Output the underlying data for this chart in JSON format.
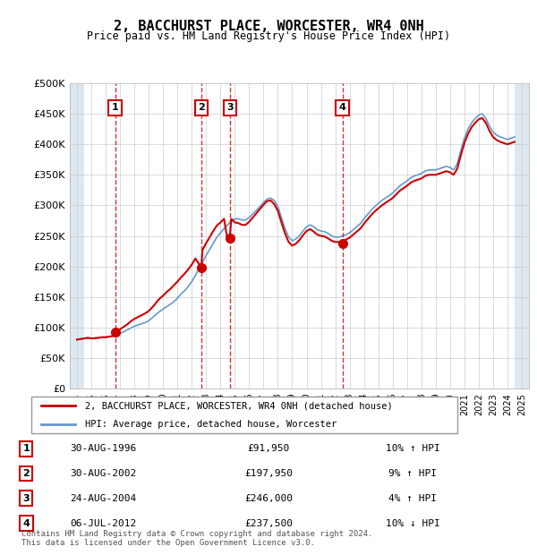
{
  "title": "2, BACCHURST PLACE, WORCESTER, WR4 0NH",
  "subtitle": "Price paid vs. HM Land Registry's House Price Index (HPI)",
  "transactions": [
    {
      "num": 1,
      "date": "30-AUG-1996",
      "price": 91950,
      "year": 1996.66,
      "pct": "10%",
      "dir": "↑"
    },
    {
      "num": 2,
      "date": "30-AUG-2002",
      "price": 197950,
      "year": 2002.66,
      "pct": "9%",
      "dir": "↑"
    },
    {
      "num": 3,
      "date": "24-AUG-2004",
      "price": 246000,
      "year": 2004.65,
      "pct": "4%",
      "dir": "↑"
    },
    {
      "num": 4,
      "date": "06-JUL-2012",
      "price": 237500,
      "year": 2012.51,
      "pct": "10%",
      "dir": "↓"
    }
  ],
  "hpi_line_color": "#6699cc",
  "property_line_color": "#cc0000",
  "dot_color": "#cc0000",
  "dashed_line_color": "#cc0000",
  "hatch_color": "#ccddee",
  "grid_color": "#cccccc",
  "ylim": [
    0,
    500000
  ],
  "yticks": [
    0,
    50000,
    100000,
    150000,
    200000,
    250000,
    300000,
    350000,
    400000,
    450000,
    500000
  ],
  "xlim_start": 1993.5,
  "xlim_end": 2025.5,
  "legend_label_property": "2, BACCHURST PLACE, WORCESTER, WR4 0NH (detached house)",
  "legend_label_hpi": "HPI: Average price, detached house, Worcester",
  "footer": "Contains HM Land Registry data © Crown copyright and database right 2024.\nThis data is licensed under the Open Government Licence v3.0.",
  "hpi_data": {
    "years": [
      1994.0,
      1994.25,
      1994.5,
      1994.75,
      1995.0,
      1995.25,
      1995.5,
      1995.75,
      1996.0,
      1996.25,
      1996.5,
      1996.75,
      1997.0,
      1997.25,
      1997.5,
      1997.75,
      1998.0,
      1998.25,
      1998.5,
      1998.75,
      1999.0,
      1999.25,
      1999.5,
      1999.75,
      2000.0,
      2000.25,
      2000.5,
      2000.75,
      2001.0,
      2001.25,
      2001.5,
      2001.75,
      2002.0,
      2002.25,
      2002.5,
      2002.75,
      2003.0,
      2003.25,
      2003.5,
      2003.75,
      2004.0,
      2004.25,
      2004.5,
      2004.75,
      2005.0,
      2005.25,
      2005.5,
      2005.75,
      2006.0,
      2006.25,
      2006.5,
      2006.75,
      2007.0,
      2007.25,
      2007.5,
      2007.75,
      2008.0,
      2008.25,
      2008.5,
      2008.75,
      2009.0,
      2009.25,
      2009.5,
      2009.75,
      2010.0,
      2010.25,
      2010.5,
      2010.75,
      2011.0,
      2011.25,
      2011.5,
      2011.75,
      2012.0,
      2012.25,
      2012.5,
      2012.75,
      2013.0,
      2013.25,
      2013.5,
      2013.75,
      2014.0,
      2014.25,
      2014.5,
      2014.75,
      2015.0,
      2015.25,
      2015.5,
      2015.75,
      2016.0,
      2016.25,
      2016.5,
      2016.75,
      2017.0,
      2017.25,
      2017.5,
      2017.75,
      2018.0,
      2018.25,
      2018.5,
      2018.75,
      2019.0,
      2019.25,
      2019.5,
      2019.75,
      2020.0,
      2020.25,
      2020.5,
      2020.75,
      2021.0,
      2021.25,
      2021.5,
      2021.75,
      2022.0,
      2022.25,
      2022.5,
      2022.75,
      2023.0,
      2023.25,
      2023.5,
      2023.75,
      2024.0,
      2024.25,
      2024.5
    ],
    "values": [
      80000,
      81000,
      82000,
      83000,
      82000,
      82500,
      83000,
      84000,
      84000,
      85000,
      86000,
      87000,
      90000,
      93000,
      96000,
      99000,
      102000,
      104000,
      106000,
      108000,
      111000,
      116000,
      121000,
      126000,
      130000,
      134000,
      138000,
      142000,
      148000,
      155000,
      160000,
      167000,
      175000,
      185000,
      196000,
      207000,
      218000,
      228000,
      238000,
      248000,
      255000,
      262000,
      268000,
      274000,
      278000,
      278000,
      276000,
      276000,
      280000,
      286000,
      292000,
      298000,
      305000,
      310000,
      312000,
      308000,
      298000,
      280000,
      262000,
      248000,
      242000,
      245000,
      250000,
      258000,
      265000,
      268000,
      265000,
      260000,
      258000,
      257000,
      254000,
      250000,
      248000,
      248000,
      250000,
      252000,
      255000,
      260000,
      265000,
      270000,
      278000,
      285000,
      292000,
      298000,
      303000,
      308000,
      312000,
      316000,
      320000,
      326000,
      332000,
      336000,
      340000,
      345000,
      348000,
      350000,
      352000,
      356000,
      358000,
      358000,
      358000,
      360000,
      362000,
      364000,
      362000,
      358000,
      368000,
      390000,
      410000,
      425000,
      435000,
      442000,
      448000,
      450000,
      442000,
      430000,
      420000,
      415000,
      412000,
      410000,
      408000,
      410000,
      412000
    ]
  },
  "property_data": {
    "years": [
      1994.0,
      1994.25,
      1994.5,
      1994.75,
      1995.0,
      1995.25,
      1995.5,
      1995.75,
      1996.0,
      1996.25,
      1996.5,
      1996.75,
      1996.66,
      1997.0,
      1997.25,
      1997.5,
      1997.75,
      1998.0,
      1998.25,
      1998.5,
      1998.75,
      1999.0,
      1999.25,
      1999.5,
      1999.75,
      2000.0,
      2000.25,
      2000.5,
      2000.75,
      2001.0,
      2001.25,
      2001.5,
      2001.75,
      2002.0,
      2002.25,
      2002.5,
      2002.66,
      2002.75,
      2003.0,
      2003.25,
      2003.5,
      2003.75,
      2004.0,
      2004.25,
      2004.5,
      2004.65,
      2004.75,
      2005.0,
      2005.25,
      2005.5,
      2005.75,
      2006.0,
      2006.25,
      2006.5,
      2006.75,
      2007.0,
      2007.25,
      2007.5,
      2007.75,
      2008.0,
      2008.25,
      2008.5,
      2008.75,
      2009.0,
      2009.25,
      2009.5,
      2009.75,
      2010.0,
      2010.25,
      2010.5,
      2010.75,
      2011.0,
      2011.25,
      2011.5,
      2011.75,
      2012.0,
      2012.25,
      2012.51,
      2012.75,
      2013.0,
      2013.25,
      2013.5,
      2013.75,
      2014.0,
      2014.25,
      2014.5,
      2014.75,
      2015.0,
      2015.25,
      2015.5,
      2015.75,
      2016.0,
      2016.25,
      2016.5,
      2016.75,
      2017.0,
      2017.25,
      2017.5,
      2017.75,
      2018.0,
      2018.25,
      2018.5,
      2018.75,
      2019.0,
      2019.25,
      2019.5,
      2019.75,
      2020.0,
      2020.25,
      2020.5,
      2020.75,
      2021.0,
      2021.25,
      2021.5,
      2021.75,
      2022.0,
      2022.25,
      2022.5,
      2022.75,
      2023.0,
      2023.25,
      2023.5,
      2023.75,
      2024.0,
      2024.25,
      2024.5
    ],
    "values": [
      80000,
      81000,
      82000,
      83000,
      82000,
      82500,
      83000,
      84000,
      84000,
      85000,
      86000,
      87000,
      91950,
      97000,
      101000,
      105000,
      110000,
      114000,
      117000,
      120000,
      123000,
      127000,
      133000,
      140000,
      147000,
      152000,
      158000,
      163000,
      169000,
      175000,
      182000,
      188000,
      195000,
      203000,
      213000,
      204000,
      197950,
      227000,
      238000,
      248000,
      258000,
      267000,
      272000,
      278000,
      242000,
      246000,
      278000,
      272000,
      271000,
      268000,
      268000,
      273000,
      280000,
      287000,
      294000,
      301000,
      307000,
      308000,
      302000,
      291000,
      272000,
      254000,
      240000,
      234000,
      237000,
      243000,
      251000,
      258000,
      261000,
      257000,
      252000,
      250000,
      249000,
      246000,
      242000,
      240000,
      240000,
      237500,
      244000,
      247000,
      252000,
      257000,
      262000,
      270000,
      277000,
      284000,
      290000,
      295000,
      300000,
      304000,
      308000,
      312000,
      318000,
      324000,
      328000,
      332000,
      337000,
      340000,
      342000,
      344000,
      348000,
      350000,
      350000,
      350000,
      352000,
      354000,
      356000,
      354000,
      350000,
      360000,
      382000,
      402000,
      417000,
      428000,
      435000,
      441000,
      443000,
      435000,
      422000,
      412000,
      407000,
      404000,
      402000,
      400000,
      402000,
      404000
    ]
  }
}
